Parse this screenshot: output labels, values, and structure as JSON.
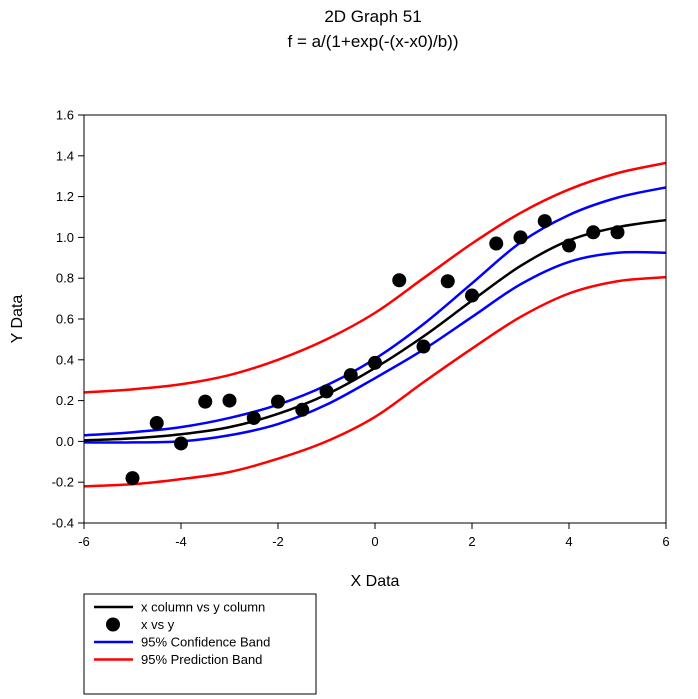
{
  "chart_data": {
    "type": "scatter",
    "title": "2D Graph 51",
    "subtitle": "f = a/(1+exp(-(x-x0)/b))",
    "xlabel": "X Data",
    "ylabel": "Y Data",
    "xlim": [
      -6,
      6
    ],
    "ylim": [
      -0.4,
      1.6
    ],
    "xticks": [
      -6,
      -4,
      -2,
      0,
      2,
      4,
      6
    ],
    "xtick_labels": [
      "-6",
      "-4",
      "-2",
      "0",
      "2",
      "4",
      "6"
    ],
    "yticks": [
      -0.4,
      -0.2,
      0.0,
      0.2,
      0.4,
      0.6,
      0.8,
      1.0,
      1.2,
      1.4,
      1.6
    ],
    "ytick_labels": [
      "-0.4",
      "-0.2",
      "0.0",
      "0.2",
      "0.4",
      "0.6",
      "0.8",
      "1.0",
      "1.2",
      "1.4",
      "1.6"
    ],
    "grid": false,
    "legend_position": "bottom-left",
    "series": [
      {
        "name": "x column vs y column",
        "kind": "line",
        "color": "#000000",
        "x": [
          -6,
          -5,
          -4,
          -3,
          -2,
          -1,
          0,
          1,
          2,
          3,
          4,
          5,
          6
        ],
        "y": [
          0.005,
          0.015,
          0.035,
          0.07,
          0.135,
          0.23,
          0.36,
          0.515,
          0.69,
          0.86,
          0.985,
          1.05,
          1.085
        ]
      },
      {
        "name": "x vs y",
        "kind": "scatter",
        "color": "#000000",
        "x": [
          -5,
          -4.5,
          -4,
          -3.5,
          -3,
          -2.5,
          -2,
          -1.5,
          -1,
          -0.5,
          0,
          0.5,
          1,
          1.5,
          2,
          2.5,
          3,
          3.5,
          4,
          4.5,
          5
        ],
        "y": [
          -0.18,
          0.09,
          -0.01,
          0.195,
          0.2,
          0.115,
          0.195,
          0.155,
          0.245,
          0.325,
          0.385,
          0.79,
          0.465,
          0.785,
          0.715,
          0.97,
          1.0,
          1.08,
          0.96,
          1.025,
          1.025
        ]
      },
      {
        "name": "95% Confidence Band",
        "kind": "line",
        "color": "#0000ff",
        "x": [
          -6,
          -5,
          -4,
          -3,
          -2,
          -1,
          0,
          1,
          2,
          3,
          4,
          5,
          6
        ],
        "y": [
          0.03,
          0.045,
          0.07,
          0.115,
          0.18,
          0.275,
          0.405,
          0.575,
          0.775,
          0.975,
          1.11,
          1.195,
          1.245
        ],
        "y2": [
          -0.005,
          -0.005,
          0.0,
          0.03,
          0.085,
          0.18,
          0.31,
          0.45,
          0.61,
          0.77,
          0.88,
          0.925,
          0.925
        ]
      },
      {
        "name": "95% Prediction Band",
        "kind": "line",
        "color": "#ff0000",
        "x": [
          -6,
          -5,
          -4,
          -3,
          -2,
          -1,
          0,
          1,
          2,
          3,
          4,
          5,
          6
        ],
        "y": [
          0.24,
          0.255,
          0.28,
          0.325,
          0.4,
          0.5,
          0.63,
          0.8,
          0.97,
          1.12,
          1.235,
          1.315,
          1.365
        ],
        "y2": [
          -0.22,
          -0.21,
          -0.185,
          -0.15,
          -0.085,
          0.0,
          0.12,
          0.29,
          0.455,
          0.61,
          0.725,
          0.785,
          0.805
        ]
      }
    ]
  }
}
